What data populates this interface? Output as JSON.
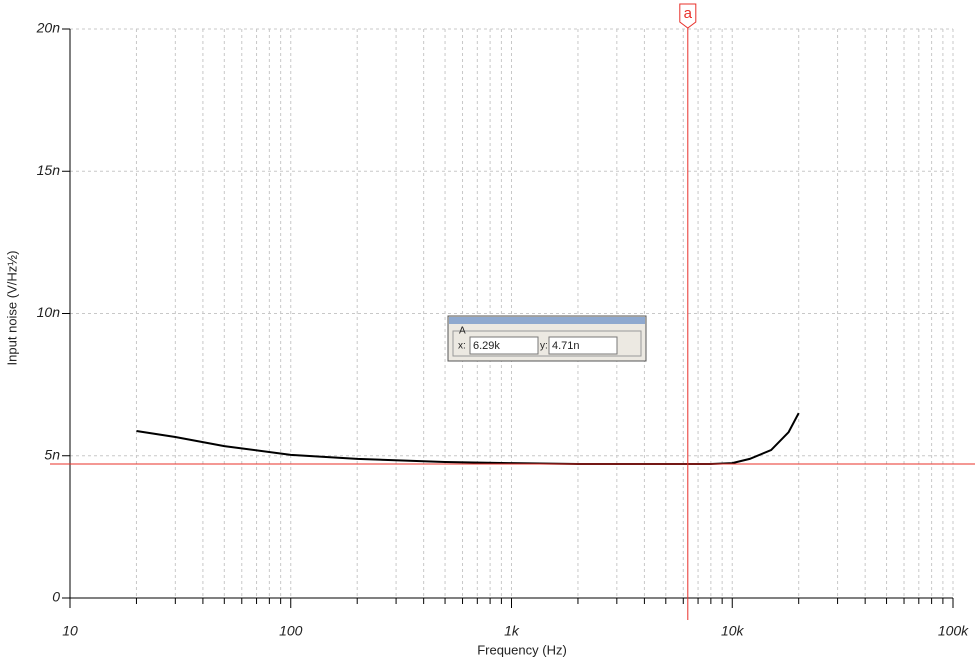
{
  "chart_data": {
    "type": "line",
    "x_label": "Frequency (Hz)",
    "y_label": "Input noise (V/Hz½)",
    "x": [
      20,
      30,
      50,
      100,
      200,
      500,
      1000,
      2000,
      5000,
      8000,
      10000,
      12000,
      15000,
      18000,
      20000
    ],
    "values": [
      5.87e-09,
      5.66e-09,
      5.34e-09,
      5.03e-09,
      4.89e-09,
      4.78e-09,
      4.74e-09,
      4.71e-09,
      4.71e-09,
      4.71e-09,
      4.74e-09,
      4.89e-09,
      5.2e-09,
      5.83e-09,
      6.5e-09
    ],
    "color": "#000000",
    "xscale": "log",
    "xlim": [
      10,
      100000
    ],
    "xticks": [
      10,
      100,
      {
        "value": 1000,
        "label": "1k"
      },
      {
        "value": 10000,
        "label": "10k"
      },
      {
        "value": 100000,
        "label": "100k"
      }
    ],
    "xminorticks": [
      20,
      30,
      40,
      50,
      60,
      70,
      80,
      90,
      200,
      300,
      400,
      500,
      600,
      700,
      800,
      900,
      2000,
      3000,
      4000,
      5000,
      6000,
      7000,
      8000,
      9000,
      20000,
      30000,
      40000,
      50000,
      60000,
      70000,
      80000,
      90000
    ],
    "ylim": [
      0,
      2e-08
    ],
    "yticks": [
      0,
      {
        "value": 5e-09,
        "label": "5n"
      },
      {
        "value": 1e-08,
        "label": "10n"
      },
      {
        "value": 1.5e-08,
        "label": "15n"
      },
      {
        "value": 2e-08,
        "label": "20n"
      }
    ],
    "grid": true,
    "cursor": {
      "name": "a",
      "box_title": "A",
      "color": "#e8302a",
      "x_prefix": "x:",
      "y_prefix": "y:",
      "x": {
        "value": 6290,
        "label": "6.29k"
      },
      "y": {
        "value": 4.71e-09,
        "label": "4.71n"
      }
    }
  }
}
